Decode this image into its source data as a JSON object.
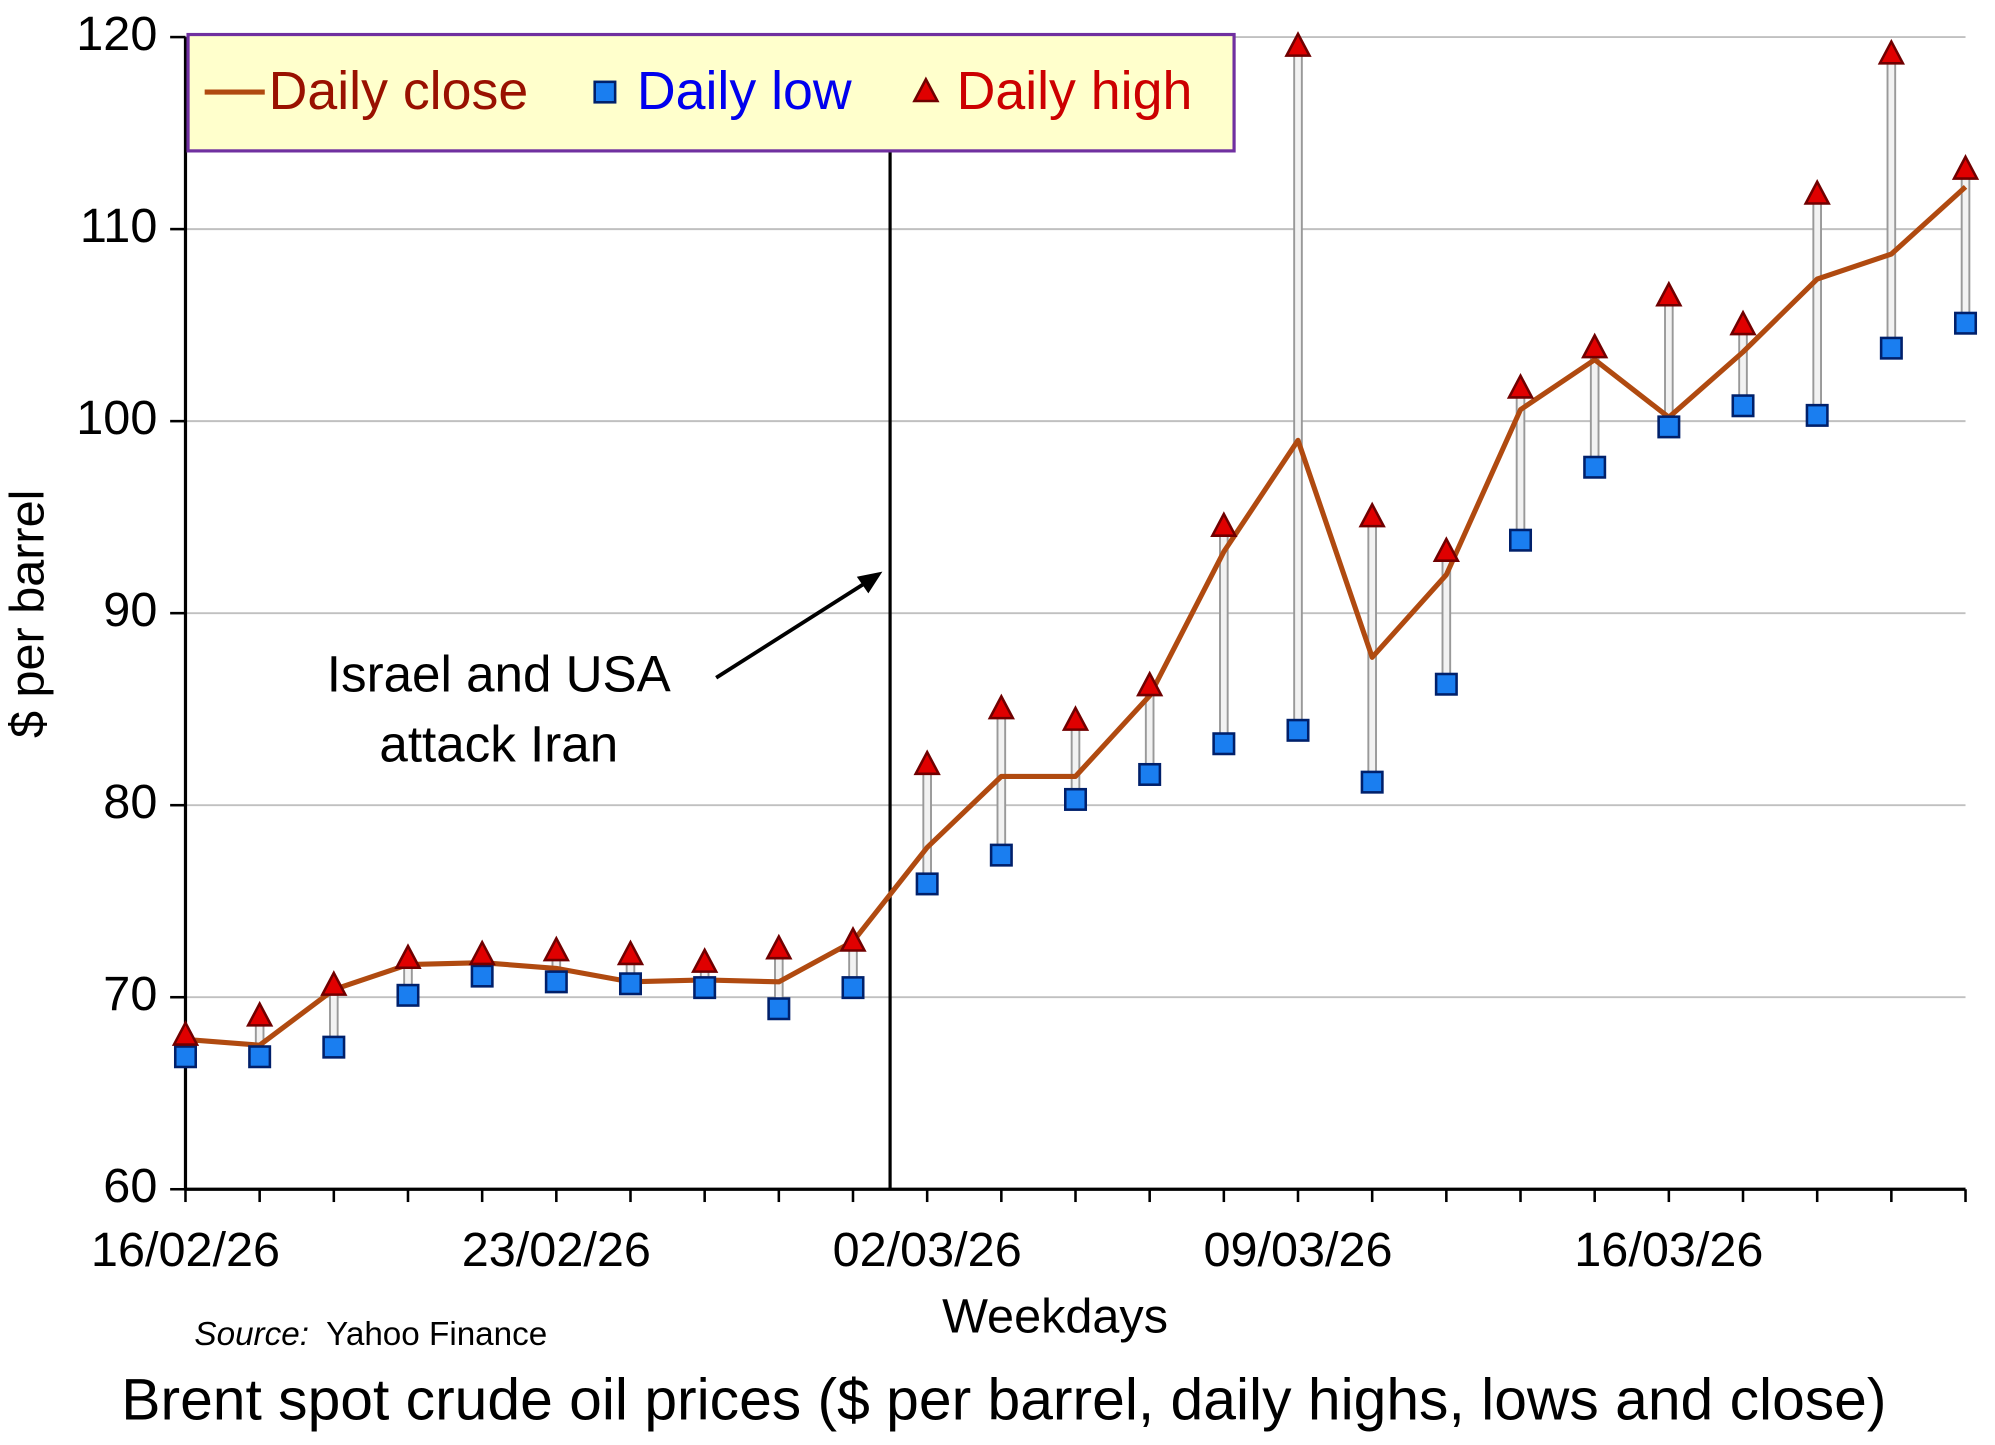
{
  "chart_data": {
    "type": "high-low-close",
    "title": "Brent spot crude oil prices ($ per barrel, daily highs, lows and close)",
    "x_label": "Weekdays",
    "y_label": "$ per barrel",
    "source": {
      "label": "Source:",
      "text": "Yahoo Finance"
    },
    "annotation": [
      "Israel and USA",
      "attack Iran"
    ],
    "categories": [
      "16/02/26",
      null,
      null,
      null,
      null,
      "23/02/26",
      null,
      null,
      null,
      null,
      "02/03/26",
      null,
      null,
      null,
      null,
      "09/03/26",
      null,
      null,
      null,
      null,
      "16/03/26",
      null,
      null,
      null,
      null
    ],
    "series": [
      {
        "name": "Daily close",
        "color": "#b04a10",
        "values": [
          67.8,
          67.5,
          70.4,
          71.7,
          71.8,
          71.5,
          70.8,
          70.9,
          70.8,
          72.9,
          77.8,
          81.5,
          81.5,
          85.7,
          93.2,
          99.0,
          87.7,
          92.0,
          100.6,
          103.2,
          100.2,
          103.6,
          107.4,
          108.7,
          112.2
        ]
      },
      {
        "name": "Daily low",
        "color": "#1a7ef0",
        "values": [
          66.9,
          66.9,
          67.4,
          70.1,
          71.1,
          70.8,
          70.7,
          70.5,
          69.4,
          70.5,
          75.9,
          77.4,
          80.3,
          81.6,
          83.2,
          83.9,
          81.2,
          86.3,
          93.8,
          97.6,
          99.7,
          100.8,
          100.3,
          103.8,
          105.1
        ]
      },
      {
        "name": "Daily high",
        "color": "#e00000",
        "values": [
          68.0,
          69.0,
          70.6,
          72.0,
          72.2,
          72.4,
          72.2,
          71.8,
          72.5,
          72.9,
          82.1,
          85.0,
          84.4,
          86.2,
          94.5,
          119.5,
          95.0,
          93.2,
          101.7,
          103.8,
          106.5,
          105.0,
          111.8,
          119.1,
          113.1
        ]
      }
    ],
    "ylim": [
      60,
      120
    ],
    "yticks": [
      60,
      70,
      80,
      90,
      100,
      110,
      120
    ],
    "grid": true
  }
}
